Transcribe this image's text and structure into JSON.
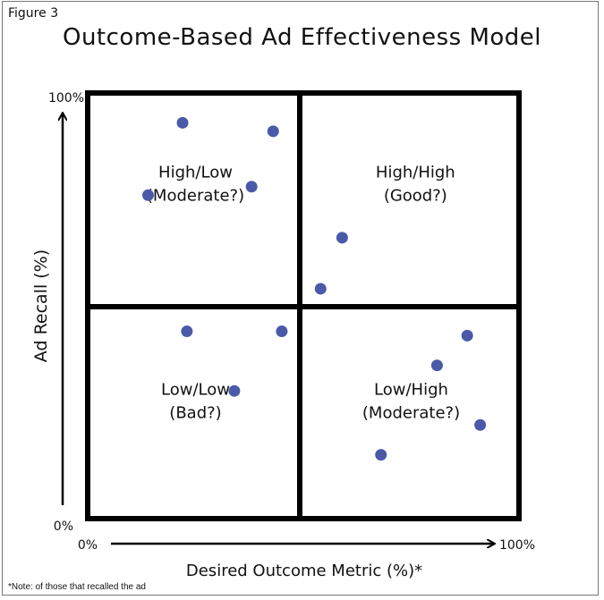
{
  "figure_label": "Figure 3",
  "note": "*Note: of those that recalled the ad",
  "colors": {
    "point": "#4a5aa8",
    "frame": "#000000"
  },
  "chart_data": {
    "type": "scatter",
    "title": "Outcome-Based Ad Effectiveness Model",
    "xlabel": "Desired Outcome Metric (%)*",
    "ylabel": "Ad Recall (%)",
    "xlim": [
      0,
      100
    ],
    "ylim": [
      0,
      100
    ],
    "x_ticks": [
      "0%",
      "100%"
    ],
    "y_ticks": [
      "0%",
      "100%"
    ],
    "grid": false,
    "quadrants": [
      {
        "line1": "High/Low",
        "line2": "(Moderate?)",
        "x": 25,
        "y": 78
      },
      {
        "line1": "High/High",
        "line2": "(Good?)",
        "x": 76,
        "y": 78
      },
      {
        "line1": "Low/Low",
        "line2": "(Bad?)",
        "x": 25,
        "y": 27
      },
      {
        "line1": "Low/High",
        "line2": "(Moderate?)",
        "x": 75,
        "y": 27
      }
    ],
    "points": [
      {
        "x": 22,
        "y": 93
      },
      {
        "x": 43,
        "y": 91
      },
      {
        "x": 38,
        "y": 78
      },
      {
        "x": 14,
        "y": 76
      },
      {
        "x": 59,
        "y": 66
      },
      {
        "x": 54,
        "y": 54
      },
      {
        "x": 23,
        "y": 44
      },
      {
        "x": 45,
        "y": 44
      },
      {
        "x": 88,
        "y": 43
      },
      {
        "x": 81,
        "y": 36
      },
      {
        "x": 34,
        "y": 30
      },
      {
        "x": 91,
        "y": 22
      },
      {
        "x": 68,
        "y": 15
      }
    ]
  }
}
